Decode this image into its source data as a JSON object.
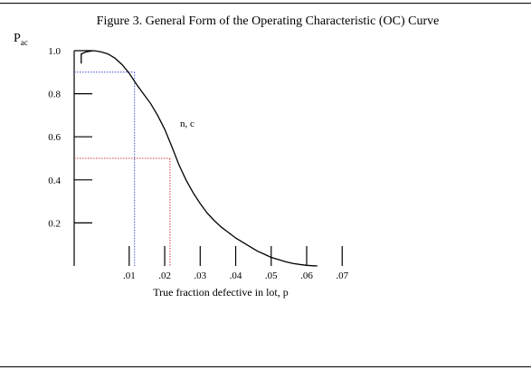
{
  "chart_data": {
    "type": "line",
    "title": "Figure 3.  General Form of the Operating Characteristic (OC) Curve",
    "ylabel_main": "P",
    "ylabel_sub": "ac",
    "xlabel": "True fraction defective in lot, p",
    "curve_label": "n, c",
    "y_ticks": [
      {
        "value": 0.2,
        "label": "0.2"
      },
      {
        "value": 0.4,
        "label": "0.4"
      },
      {
        "value": 0.6,
        "label": "0.6"
      },
      {
        "value": 0.8,
        "label": "0.8"
      },
      {
        "value": 1.0,
        "label": "1.0"
      }
    ],
    "x_ticks": [
      {
        "value": 0.01,
        "label": ".01"
      },
      {
        "value": 0.02,
        "label": ".02"
      },
      {
        "value": 0.03,
        "label": ".03"
      },
      {
        "value": 0.04,
        "label": ".04"
      },
      {
        "value": 0.05,
        "label": ".05"
      },
      {
        "value": 0.06,
        "label": ".06"
      },
      {
        "value": 0.07,
        "label": ".07"
      }
    ],
    "xlim": [
      -0.0055,
      0.0735
    ],
    "ylim": [
      0.0,
      1.0
    ],
    "series": [
      {
        "x": [
          -0.0035,
          -0.002,
          0.0,
          0.002,
          0.004,
          0.006,
          0.008,
          0.01,
          0.012,
          0.014,
          0.016,
          0.018,
          0.02,
          0.022,
          0.024,
          0.026,
          0.028,
          0.03,
          0.032,
          0.034,
          0.036,
          0.038,
          0.04,
          0.042,
          0.044,
          0.046,
          0.048,
          0.05,
          0.052,
          0.054,
          0.056,
          0.058,
          0.06,
          0.062,
          0.063
        ],
        "y": [
          0.985,
          0.995,
          1.0,
          0.995,
          0.985,
          0.965,
          0.935,
          0.895,
          0.845,
          0.8,
          0.755,
          0.7,
          0.635,
          0.555,
          0.47,
          0.4,
          0.34,
          0.29,
          0.245,
          0.21,
          0.18,
          0.155,
          0.13,
          0.11,
          0.09,
          0.07,
          0.055,
          0.04,
          0.03,
          0.02,
          0.012,
          0.007,
          0.003,
          0.001,
          0.0
        ]
      }
    ],
    "reference_lines": [
      {
        "p": 0.0115,
        "pa": 0.9,
        "color": "#3a4fd0"
      },
      {
        "p": 0.0215,
        "pa": 0.5,
        "color": "#d23a3a"
      }
    ],
    "grid": false,
    "legend": "none"
  }
}
